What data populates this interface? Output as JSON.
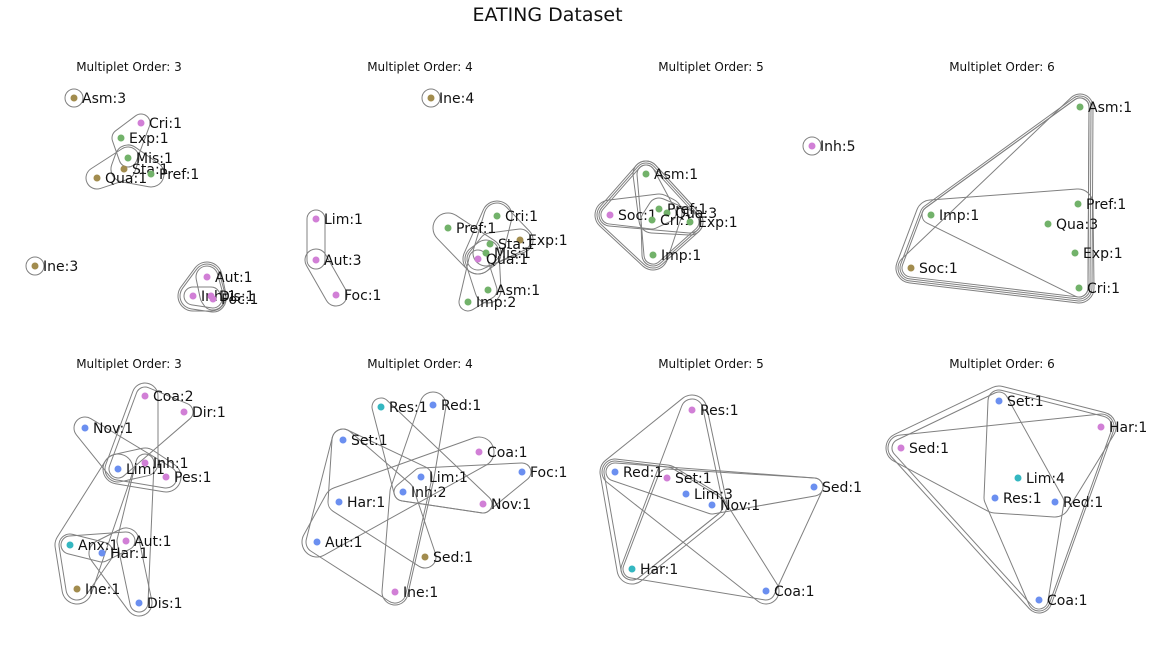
{
  "figure": {
    "title": "EATING Dataset"
  },
  "colors": {
    "green": "#72b26a",
    "olive": "#a28c4e",
    "pink": "#d17fd6",
    "blue": "#6b8ff0",
    "teal": "#34b7c1",
    "edge": "#808080"
  },
  "panels": [
    {
      "title": "Multiplet Order: 3",
      "nodes": [
        {
          "label": "Asm:3",
          "color": "olive"
        },
        {
          "label": "Cri:1",
          "color": "pink"
        },
        {
          "label": "Exp:1",
          "color": "green"
        },
        {
          "label": "Mis:1",
          "color": "green"
        },
        {
          "label": "Sta:1",
          "color": "olive"
        },
        {
          "label": "Qua:1",
          "color": "olive"
        },
        {
          "label": "Pref:1",
          "color": "green"
        },
        {
          "label": "Ine:3",
          "color": "olive"
        },
        {
          "label": "Aut:1",
          "color": "pink"
        },
        {
          "label": "Inh:1",
          "color": "pink"
        },
        {
          "label": "Dis:1",
          "color": "pink"
        },
        {
          "label": "Foc:1",
          "color": "pink"
        }
      ]
    },
    {
      "title": "Multiplet Order: 4",
      "nodes": [
        {
          "label": "Ine:4",
          "color": "olive"
        },
        {
          "label": "Lim:1",
          "color": "pink"
        },
        {
          "label": "Aut:3",
          "color": "pink"
        },
        {
          "label": "Foc:1",
          "color": "pink"
        },
        {
          "label": "Cri:1",
          "color": "green"
        },
        {
          "label": "Pref:1",
          "color": "green"
        },
        {
          "label": "Exp:1",
          "color": "olive"
        },
        {
          "label": "Sta:1",
          "color": "green"
        },
        {
          "label": "Mis:1",
          "color": "green"
        },
        {
          "label": "Qua:1",
          "color": "pink"
        },
        {
          "label": "Asm:1",
          "color": "green"
        },
        {
          "label": "Imp:2",
          "color": "green"
        }
      ]
    },
    {
      "title": "Multiplet Order: 5",
      "nodes": [
        {
          "label": "Inh:5",
          "color": "pink"
        },
        {
          "label": "Asm:1",
          "color": "green"
        },
        {
          "label": "Pref:1",
          "color": "green"
        },
        {
          "label": "Soc:1",
          "color": "pink"
        },
        {
          "label": "Qua:3",
          "color": "green"
        },
        {
          "label": "Cri:1",
          "color": "green"
        },
        {
          "label": "Exp:1",
          "color": "green"
        },
        {
          "label": "Imp:1",
          "color": "green"
        }
      ]
    },
    {
      "title": "Multiplet Order: 6",
      "nodes": [
        {
          "label": "Asm:1",
          "color": "green"
        },
        {
          "label": "Imp:1",
          "color": "green"
        },
        {
          "label": "Pref:1",
          "color": "green"
        },
        {
          "label": "Qua:3",
          "color": "green"
        },
        {
          "label": "Exp:1",
          "color": "green"
        },
        {
          "label": "Soc:1",
          "color": "olive"
        },
        {
          "label": "Cri:1",
          "color": "green"
        }
      ]
    },
    {
      "title": "Multiplet Order: 3",
      "nodes": [
        {
          "label": "Coa:2",
          "color": "pink"
        },
        {
          "label": "Dir:1",
          "color": "pink"
        },
        {
          "label": "Nov:1",
          "color": "blue"
        },
        {
          "label": "Inh:1",
          "color": "pink"
        },
        {
          "label": "Lim:1",
          "color": "blue"
        },
        {
          "label": "Pes:1",
          "color": "pink"
        },
        {
          "label": "Aut:1",
          "color": "pink"
        },
        {
          "label": "Anx:1",
          "color": "teal"
        },
        {
          "label": "Har:1",
          "color": "blue"
        },
        {
          "label": "Ine:1",
          "color": "olive"
        },
        {
          "label": "Dis:1",
          "color": "blue"
        }
      ]
    },
    {
      "title": "Multiplet Order: 4",
      "nodes": [
        {
          "label": "Res:1",
          "color": "teal"
        },
        {
          "label": "Red:1",
          "color": "blue"
        },
        {
          "label": "Set:1",
          "color": "blue"
        },
        {
          "label": "Coa:1",
          "color": "pink"
        },
        {
          "label": "Foc:1",
          "color": "blue"
        },
        {
          "label": "Lim:1",
          "color": "blue"
        },
        {
          "label": "Inh:2",
          "color": "blue"
        },
        {
          "label": "Har:1",
          "color": "blue"
        },
        {
          "label": "Nov:1",
          "color": "pink"
        },
        {
          "label": "Aut:1",
          "color": "blue"
        },
        {
          "label": "Sed:1",
          "color": "olive"
        },
        {
          "label": "Ine:1",
          "color": "pink"
        }
      ]
    },
    {
      "title": "Multiplet Order: 5",
      "nodes": [
        {
          "label": "Res:1",
          "color": "pink"
        },
        {
          "label": "Red:1",
          "color": "blue"
        },
        {
          "label": "Set:1",
          "color": "pink"
        },
        {
          "label": "Lim:3",
          "color": "blue"
        },
        {
          "label": "Nov:1",
          "color": "blue"
        },
        {
          "label": "Sed:1",
          "color": "blue"
        },
        {
          "label": "Har:1",
          "color": "teal"
        },
        {
          "label": "Coa:1",
          "color": "blue"
        }
      ]
    },
    {
      "title": "Multiplet Order: 6",
      "nodes": [
        {
          "label": "Set:1",
          "color": "blue"
        },
        {
          "label": "Har:1",
          "color": "pink"
        },
        {
          "label": "Sed:1",
          "color": "pink"
        },
        {
          "label": "Lim:4",
          "color": "teal"
        },
        {
          "label": "Res:1",
          "color": "blue"
        },
        {
          "label": "Red:1",
          "color": "blue"
        },
        {
          "label": "Coa:1",
          "color": "blue"
        }
      ]
    }
  ]
}
